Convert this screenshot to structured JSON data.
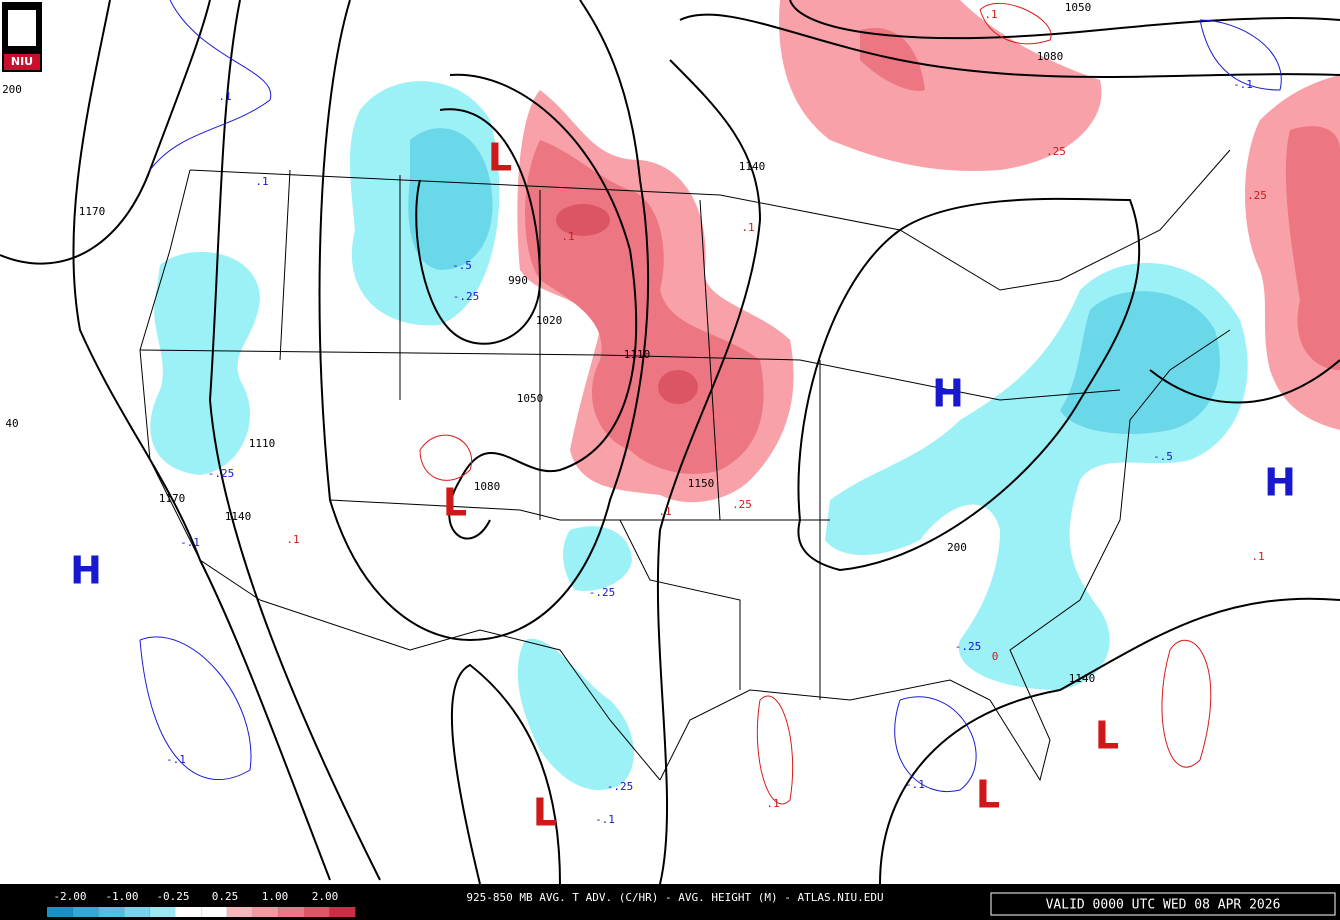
{
  "logo": "NIU",
  "height_labels": [
    "1050",
    "1080",
    "1140",
    "1170",
    "990",
    "1020",
    "1110",
    "1050",
    "1110",
    "1080",
    "1170",
    "1140",
    "1150",
    "200",
    "200",
    "40",
    "1140"
  ],
  "advection_labels_cold": [
    ".1",
    ".1",
    "-.5",
    "-.25",
    "-.25",
    "-.1",
    "-.25",
    "-.25",
    "-.5",
    "-.1",
    "-.25",
    "-.1",
    "-.1",
    "-.1"
  ],
  "advection_labels_warm": [
    ".1",
    ".1",
    ".25",
    ".25",
    ".1",
    ".1",
    ".1",
    ".25",
    ".1",
    ".1",
    "0"
  ],
  "lows": [
    "L",
    "L",
    "L",
    "L",
    "L"
  ],
  "highs": [
    "H",
    "H",
    "H"
  ],
  "colorbar_labels": [
    "-2.00",
    "-1.00",
    "-0.25",
    "0.25",
    "1.00",
    "2.00"
  ],
  "footer_title": "925-850 MB AVG. T ADV. (C/HR) - AVG. HEIGHT (M) - ATLAS.NIU.EDU",
  "valid_time": "VALID 0000 UTC WED 08 APR 2026"
}
